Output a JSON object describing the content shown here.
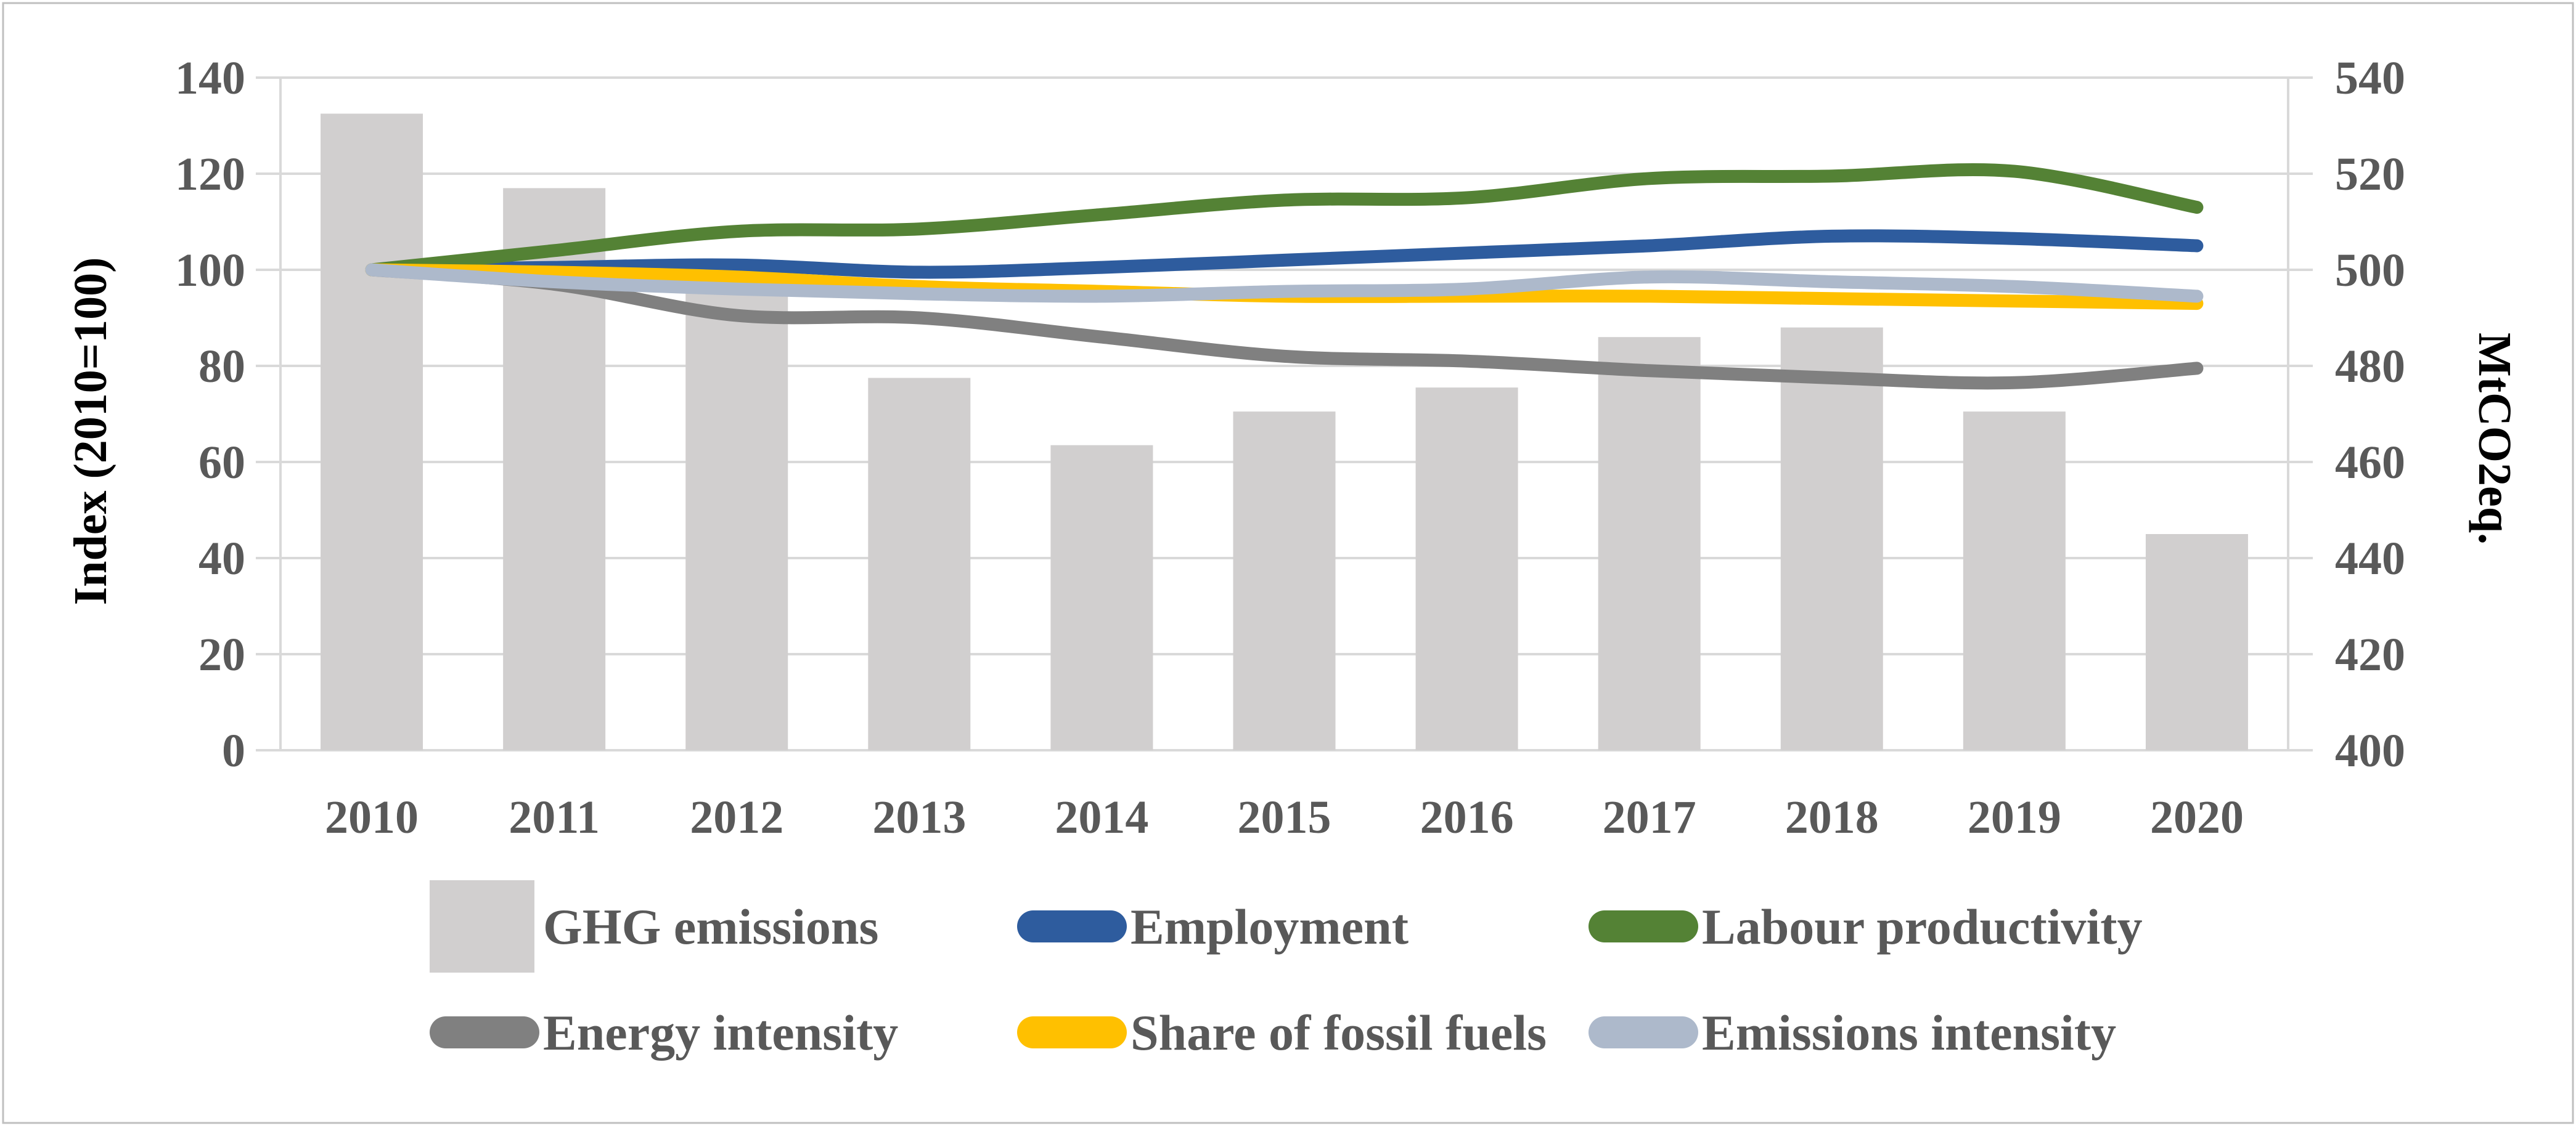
{
  "figure": {
    "background": "#FFFFFF",
    "border_color": "#BFBFBF",
    "grid_color": "#D9D9D9",
    "text_color": "#595959",
    "bar_color": "#D1CFCF"
  },
  "chart_data": {
    "type": "combo-bar-line",
    "categories": [
      "2010",
      "2011",
      "2012",
      "2013",
      "2014",
      "2015",
      "2016",
      "2017",
      "2018",
      "2019",
      "2020"
    ],
    "axes": {
      "left": {
        "title": "Index (2010=100)",
        "min": 0,
        "max": 140,
        "tick_step": 20,
        "ticks": [
          0,
          20,
          40,
          60,
          80,
          100,
          120,
          140
        ]
      },
      "right": {
        "title": "MtCO2eq.",
        "min": 400,
        "max": 540,
        "tick_step": 20,
        "ticks": [
          400,
          420,
          440,
          460,
          480,
          500,
          520,
          540
        ]
      }
    },
    "grid": true,
    "legend_position": "bottom",
    "bar_series": [
      {
        "name": "GHG emissions",
        "axis": "right",
        "color": "#D1CFCF",
        "values": [
          532.5,
          517,
          495.5,
          477.5,
          463.5,
          470.5,
          475.5,
          486,
          488,
          470.5,
          445
        ]
      }
    ],
    "line_series": [
      {
        "name": "Employment",
        "axis": "left",
        "color": "#2E5C9E",
        "values": [
          100,
          100.5,
          101,
          99.5,
          100.5,
          102,
          103.5,
          105,
          107,
          106.5,
          105
        ]
      },
      {
        "name": "Labour productivity",
        "axis": "left",
        "color": "#548235",
        "values": [
          100,
          104,
          108,
          108.5,
          111.5,
          114.5,
          115,
          119,
          119.5,
          120.5,
          113
        ]
      },
      {
        "name": "Energy intensity",
        "axis": "left",
        "color": "#808080",
        "values": [
          100,
          97,
          90.5,
          90,
          86,
          82,
          81,
          79,
          77.5,
          76.5,
          79.5
        ]
      },
      {
        "name": "Share of fossil fuels",
        "axis": "left",
        "color": "#FFC000",
        "values": [
          100,
          99.5,
          98.5,
          96.5,
          95.5,
          94.5,
          94.5,
          94.5,
          94,
          93.5,
          93
        ]
      },
      {
        "name": "Emissions intensity",
        "axis": "left",
        "color": "#ADB9CB",
        "values": [
          100,
          97.5,
          96,
          95,
          94.5,
          95.5,
          96,
          98.5,
          97.5,
          96.5,
          94.5
        ]
      }
    ]
  },
  "legend": {
    "rows": [
      [
        {
          "label": "GHG emissions",
          "swatch": "bar"
        },
        {
          "label": "Employment",
          "swatch": "line"
        },
        {
          "label": "Labour productivity",
          "swatch": "line"
        }
      ],
      [
        {
          "label": "Energy intensity",
          "swatch": "line"
        },
        {
          "label": "Share of fossil fuels",
          "swatch": "line"
        },
        {
          "label": "Emissions intensity",
          "swatch": "line"
        }
      ]
    ]
  }
}
